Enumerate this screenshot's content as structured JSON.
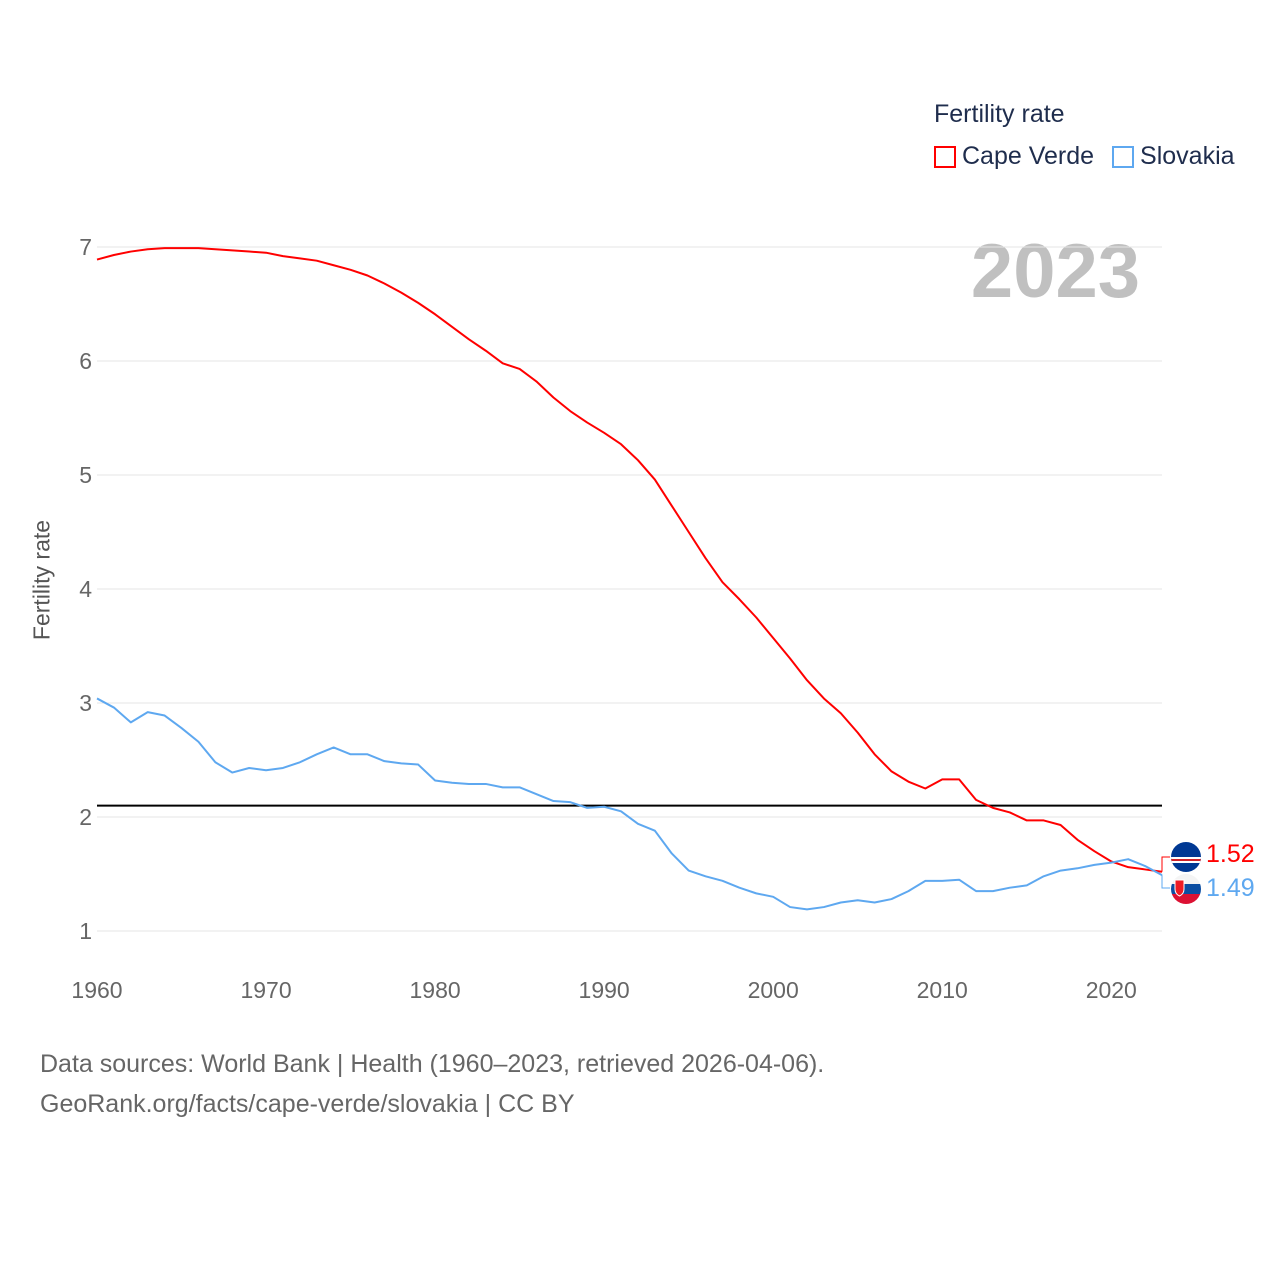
{
  "legend": {
    "title": "Fertility rate",
    "items": [
      "Cape Verde",
      "Slovakia"
    ]
  },
  "year_label": "2023",
  "source": {
    "line1": "Data sources: World Bank | Health (1960–2023, retrieved 2026-04-06).",
    "line2": "GeoRank.org/facts/cape-verde/slovakia | CC BY"
  },
  "end_labels": {
    "cape_verde": "1.52",
    "slovakia": "1.49"
  },
  "flags": [
    "cape-verde-flag-icon",
    "slovakia-flag-icon"
  ],
  "chart_data": {
    "type": "line",
    "title": "",
    "xlabel": "",
    "ylabel": "Fertility rate",
    "xlim": [
      1960,
      2023
    ],
    "ylim": [
      1,
      7
    ],
    "x_ticks": [
      "1960",
      "1970",
      "1980",
      "1990",
      "2000",
      "2010",
      "2020"
    ],
    "y_ticks": [
      "1",
      "2",
      "3",
      "4",
      "5",
      "6",
      "7"
    ],
    "grid": true,
    "legend_placement": "top-right",
    "reference_line": {
      "value": 2.1,
      "color": "#000000"
    },
    "x_start": 1960,
    "series": [
      {
        "name": "Cape Verde",
        "color": "#ff0000",
        "values": [
          6.89,
          6.93,
          6.96,
          6.98,
          6.99,
          6.99,
          6.99,
          6.98,
          6.97,
          6.96,
          6.95,
          6.92,
          6.9,
          6.88,
          6.84,
          6.8,
          6.75,
          6.68,
          6.6,
          6.51,
          6.41,
          6.3,
          6.19,
          6.09,
          5.98,
          5.93,
          5.82,
          5.68,
          5.56,
          5.46,
          5.37,
          5.27,
          5.13,
          4.96,
          4.73,
          4.5,
          4.27,
          4.06,
          3.91,
          3.75,
          3.57,
          3.39,
          3.2,
          3.04,
          2.91,
          2.74,
          2.55,
          2.4,
          2.31,
          2.25,
          2.33,
          2.33,
          2.15,
          2.08,
          2.04,
          1.97,
          1.97,
          1.93,
          1.8,
          1.7,
          1.61,
          1.56,
          1.54,
          1.52
        ]
      },
      {
        "name": "Slovakia",
        "color": "#5ea8f0",
        "values": [
          3.04,
          2.96,
          2.83,
          2.92,
          2.89,
          2.78,
          2.66,
          2.48,
          2.39,
          2.43,
          2.41,
          2.43,
          2.48,
          2.55,
          2.61,
          2.55,
          2.55,
          2.49,
          2.47,
          2.46,
          2.32,
          2.3,
          2.29,
          2.29,
          2.26,
          2.26,
          2.2,
          2.14,
          2.13,
          2.08,
          2.09,
          2.05,
          1.94,
          1.88,
          1.68,
          1.53,
          1.48,
          1.44,
          1.38,
          1.33,
          1.3,
          1.21,
          1.19,
          1.21,
          1.25,
          1.27,
          1.25,
          1.28,
          1.35,
          1.44,
          1.44,
          1.45,
          1.35,
          1.35,
          1.38,
          1.4,
          1.48,
          1.53,
          1.55,
          1.58,
          1.6,
          1.63,
          1.57,
          1.49
        ]
      }
    ]
  }
}
